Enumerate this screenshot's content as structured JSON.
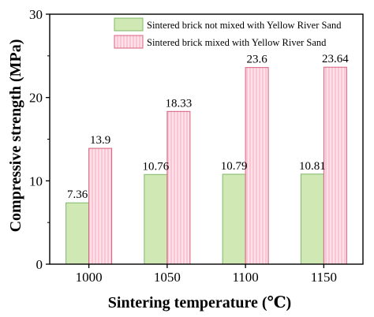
{
  "chart_data": {
    "type": "bar",
    "title": "",
    "xlabel": "Sintering temperature (℃)",
    "ylabel": "Compressive strength (MPa)",
    "categories": [
      "1000",
      "1050",
      "1100",
      "1150"
    ],
    "ylim": [
      0,
      30
    ],
    "yticks": [
      "0",
      "10",
      "20",
      "30"
    ],
    "grid": false,
    "legend_position": "top-right",
    "series": [
      {
        "name": "Sintered brick not mixed with Yellow River Sand",
        "values": [
          7.36,
          10.76,
          10.79,
          10.81
        ],
        "labels": [
          "7.36",
          "10.76",
          "10.79",
          "10.81"
        ],
        "fill": "#cfe8b4",
        "stroke": "#7fb86a"
      },
      {
        "name": "Sintered brick mixed with Yellow River Sand",
        "values": [
          13.9,
          18.33,
          23.6,
          23.64
        ],
        "labels": [
          "13.9",
          "18.33",
          "23.6",
          "23.64"
        ],
        "fill": "#fde0e8",
        "stroke": "#d9607f"
      }
    ]
  }
}
